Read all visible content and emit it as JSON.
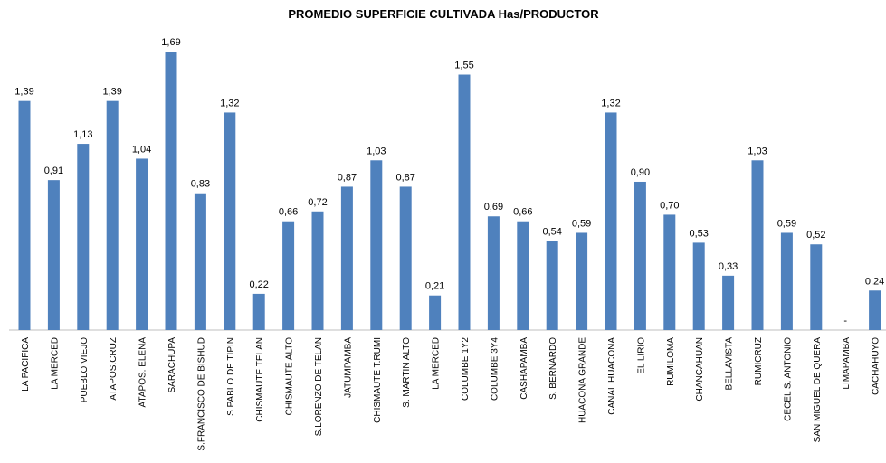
{
  "chart_data": {
    "type": "bar",
    "title": "PROMEDIO  SUPERFICIE  CULTIVADA  Has/PRODUCTOR",
    "categories": [
      "LA PACIFICA",
      "LA MERCED",
      "PUEBLO VIEJO",
      "ATAPOS.CRUZ",
      "ATAPOS. ELENA",
      "SARACHUPA",
      "S.FRANCISCO DE BISHUD",
      "S PABLO DE TIPIN",
      "CHISMAUTE TELAN",
      "CHISMAUTE ALTO",
      "S.LORENZO DE TELAN",
      "JATUMPAMBA",
      "CHISMAUTE T.RUMI",
      "S. MARTIN ALTO",
      "LA MERCED",
      "COLUMBE 1Y2",
      "COLUMBE 3Y4",
      "CASHAPAMBA",
      "S. BERNARDO",
      "HUACONA GRANDE",
      "CANAL HUACONA",
      "EL LIRIO",
      "RUMILOMA",
      "CHANCAHUAN",
      "BELLAVISTA",
      "RUMICRUZ",
      "CECEL S. ANTONIO",
      "SAN MIGUEL DE QUERA",
      "LIMAPAMBA",
      "CACHAHUYO"
    ],
    "values": [
      1.39,
      0.91,
      1.13,
      1.39,
      1.04,
      1.69,
      0.83,
      1.32,
      0.22,
      0.66,
      0.72,
      0.87,
      1.03,
      0.87,
      0.21,
      1.55,
      0.69,
      0.66,
      0.54,
      0.59,
      1.32,
      0.9,
      0.7,
      0.53,
      0.33,
      1.03,
      0.59,
      0.52,
      0,
      0.24
    ],
    "value_labels": [
      "1,39",
      "0,91",
      "1,13",
      "1,39",
      "1,04",
      "1,69",
      "0,83",
      "1,32",
      "0,22",
      "0,66",
      "0,72",
      "0,87",
      "1,03",
      "0,87",
      "0,21",
      "1,55",
      "0,69",
      "0,66",
      "0,54",
      "0,59",
      "1,32",
      "0,90",
      "0,70",
      "0,53",
      "0,33",
      "1,03",
      "0,59",
      "0,52",
      "-",
      "0,24"
    ],
    "color": "#4f81bd"
  }
}
